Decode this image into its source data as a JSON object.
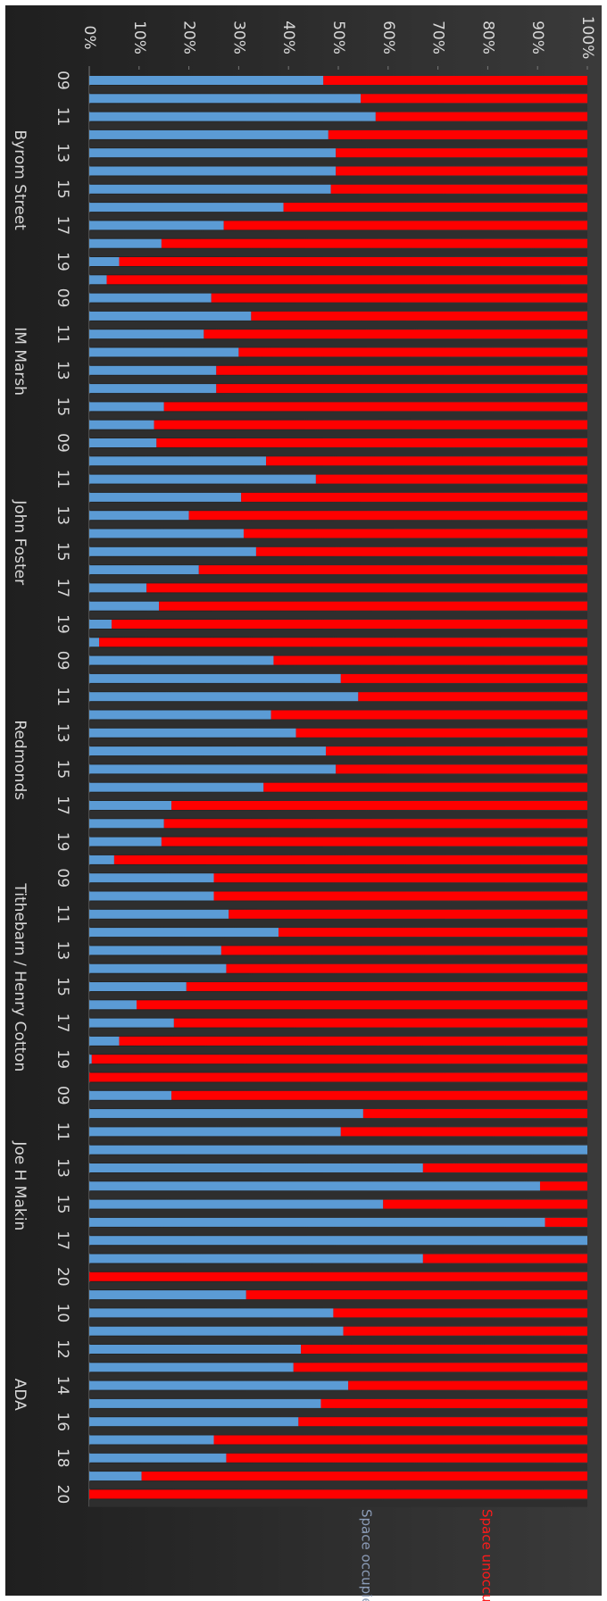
{
  "chart_data": {
    "type": "stacked-bar-rotated",
    "groups": [
      {
        "name": "Byrom Street",
        "categories": [
          "09",
          null,
          "11",
          null,
          "13",
          null,
          "15",
          null,
          "17",
          null,
          "19",
          null
        ]
      },
      {
        "name": "IM Marsh",
        "categories": [
          "09",
          null,
          "11",
          null,
          "13",
          null,
          "15",
          null
        ]
      },
      {
        "name": "John Foster",
        "categories": [
          "09",
          null,
          "11",
          null,
          "13",
          null,
          "15",
          null,
          "17",
          null,
          "19",
          null
        ]
      },
      {
        "name": "Redmonds",
        "categories": [
          "09",
          null,
          "11",
          null,
          "13",
          null,
          "15",
          null,
          "17",
          null,
          "19",
          null
        ]
      },
      {
        "name": "Tithebarn / Henry Cotton",
        "categories": [
          "09",
          null,
          "11",
          null,
          "13",
          null,
          "15",
          null,
          "17",
          null,
          "19",
          null
        ]
      },
      {
        "name": "Joe H Makin",
        "categories": [
          "09",
          null,
          "11",
          null,
          "13",
          null,
          "15",
          null,
          "17",
          null,
          "20"
        ]
      },
      {
        "name": "ADA",
        "categories": [
          null,
          "10",
          null,
          "12",
          null,
          "14",
          null,
          "16",
          null,
          "18",
          null,
          "20"
        ]
      }
    ],
    "series": [
      {
        "name": "Space occupied",
        "color": "#5b9bd5",
        "label_color": "#8c9db8",
        "values": [
          47,
          54.5,
          57.5,
          48,
          49.5,
          49.5,
          48.5,
          39,
          27,
          14.5,
          6,
          3.5,
          24.5,
          32.5,
          23,
          30,
          25.5,
          25.5,
          15,
          13,
          13.5,
          35.5,
          45.5,
          30.5,
          20,
          31,
          33.5,
          22,
          11.5,
          14,
          4.5,
          2,
          37,
          50.5,
          54,
          36.5,
          41.5,
          47.5,
          49.5,
          35,
          16.5,
          15,
          14.5,
          5,
          25,
          25,
          28,
          38,
          26.5,
          27.5,
          19.5,
          9.5,
          17,
          6,
          0.5,
          0,
          16.5,
          55,
          50.5,
          100,
          67,
          90.5,
          59,
          91.5,
          100,
          67,
          0,
          31.5,
          49,
          51,
          42.5,
          41,
          52,
          46.5,
          42,
          25,
          27.5,
          10.5,
          0
        ]
      },
      {
        "name": "Space unoccupied",
        "color": "#ff0000",
        "label_color": "#ff1a1a",
        "values": [
          53,
          45.5,
          42.5,
          52,
          50.5,
          50.5,
          51.5,
          61,
          73,
          85.5,
          94,
          96.5,
          75.5,
          67.5,
          77,
          70,
          74.5,
          74.5,
          85,
          87,
          86.5,
          64.5,
          54.5,
          69.5,
          80,
          69,
          66.5,
          78,
          88.5,
          86,
          95.5,
          98,
          63,
          49.5,
          46,
          63.5,
          58.5,
          52.5,
          50.5,
          65,
          83.5,
          85,
          85.5,
          95,
          75,
          75,
          72,
          62,
          73.5,
          72.5,
          80.5,
          90.5,
          83,
          94,
          99.5,
          100,
          83.5,
          45,
          49.5,
          0,
          33,
          9.5,
          41,
          8.5,
          0,
          33,
          100,
          68.5,
          51,
          49,
          57.5,
          59,
          48,
          53.5,
          58,
          75,
          72.5,
          89.5,
          100
        ]
      }
    ],
    "xlim": [
      0,
      100
    ],
    "xticks": [
      {
        "value": 0,
        "label": "0%"
      },
      {
        "value": 10,
        "label": "10%"
      },
      {
        "value": 20,
        "label": "20%"
      },
      {
        "value": 30,
        "label": "30%"
      },
      {
        "value": 40,
        "label": "40%"
      },
      {
        "value": 50,
        "label": "50%"
      },
      {
        "value": 60,
        "label": "60%"
      },
      {
        "value": 70,
        "label": "70%"
      },
      {
        "value": 80,
        "label": "80%"
      },
      {
        "value": 90,
        "label": "90%"
      },
      {
        "value": 100,
        "label": "100%"
      }
    ],
    "grid": false
  }
}
